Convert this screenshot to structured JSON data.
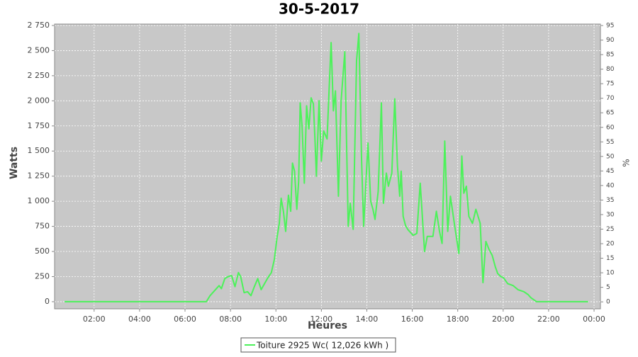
{
  "chart_data": {
    "type": "line",
    "title": "30-5-2017",
    "x_label": "Heures",
    "y_label": "Watts",
    "y2_label": "%",
    "xlim": [
      0.26,
      24.28
    ],
    "xticks": [
      {
        "value": 2,
        "label": "02:00"
      },
      {
        "value": 4,
        "label": "04:00"
      },
      {
        "value": 6,
        "label": "06:00"
      },
      {
        "value": 8,
        "label": "08:00"
      },
      {
        "value": 10,
        "label": "10:00"
      },
      {
        "value": 12,
        "label": "12:00"
      },
      {
        "value": 14,
        "label": "14:00"
      },
      {
        "value": 16,
        "label": "16:00"
      },
      {
        "value": 18,
        "label": "18:00"
      },
      {
        "value": 20,
        "label": "20:00"
      },
      {
        "value": 22,
        "label": "22:00"
      },
      {
        "value": 24,
        "label": "00:00"
      }
    ],
    "ylim": [
      -71,
      2764
    ],
    "yticks": [
      0,
      250,
      500,
      750,
      {
        "value": 1000,
        "label": "1 000"
      },
      {
        "value": 1250,
        "label": "1 250"
      },
      {
        "value": 1500,
        "label": "1 500"
      },
      {
        "value": 1750,
        "label": "1 750"
      },
      {
        "value": 2000,
        "label": "2 000"
      },
      {
        "value": 2250,
        "label": "2 250"
      },
      {
        "value": 2500,
        "label": "2 500"
      },
      {
        "value": 2750,
        "label": "2 750"
      }
    ],
    "y2lim": [
      -2.4,
      95.5
    ],
    "y2ticks": [
      0,
      5,
      10,
      15,
      20,
      25,
      30,
      35,
      40,
      45,
      50,
      55,
      60,
      65,
      70,
      75,
      80,
      85,
      90,
      95
    ],
    "grid": true,
    "legend": "bottom",
    "x": [
      0.7,
      6.5,
      6.94,
      7.1,
      7.3,
      7.5,
      7.6,
      7.75,
      7.9,
      8.05,
      8.2,
      8.35,
      8.45,
      8.6,
      8.75,
      8.9,
      9.05,
      9.2,
      9.35,
      9.5,
      9.65,
      9.8,
      9.93,
      10.05,
      10.15,
      10.23,
      10.33,
      10.43,
      10.55,
      10.65,
      10.73,
      10.82,
      10.92,
      11.0,
      11.07,
      11.15,
      11.25,
      11.35,
      11.45,
      11.55,
      11.65,
      11.72,
      11.78,
      11.9,
      12.0,
      12.1,
      12.25,
      12.33,
      12.43,
      12.53,
      12.62,
      12.75,
      12.87,
      13.03,
      13.18,
      13.27,
      13.4,
      13.55,
      13.65,
      13.77,
      13.86,
      14.05,
      14.17,
      14.27,
      14.36,
      14.5,
      14.64,
      14.73,
      14.86,
      14.95,
      15.1,
      15.23,
      15.35,
      15.45,
      15.51,
      15.6,
      15.7,
      15.8,
      15.88,
      16.04,
      16.2,
      16.35,
      16.54,
      16.66,
      16.91,
      17.06,
      17.2,
      17.31,
      17.43,
      17.56,
      17.68,
      17.85,
      18.05,
      18.18,
      18.27,
      18.38,
      18.49,
      18.65,
      18.8,
      18.99,
      19.11,
      19.24,
      19.38,
      19.52,
      19.65,
      19.76,
      19.9,
      20.01,
      20.2,
      20.44,
      20.65,
      20.91,
      21.1,
      21.22,
      21.47,
      23.74
    ],
    "series": [
      {
        "name": "Toiture 2925 Wc( 12,026 kWh )",
        "color": "#4cf25a",
        "values": [
          0,
          0,
          0,
          60,
          110,
          160,
          130,
          230,
          250,
          260,
          150,
          290,
          250,
          90,
          100,
          60,
          150,
          230,
          120,
          180,
          240,
          290,
          420,
          640,
          780,
          1030,
          900,
          700,
          1060,
          900,
          1380,
          1300,
          920,
          1200,
          1980,
          1750,
          1180,
          1950,
          1720,
          2030,
          1970,
          1600,
          1250,
          2000,
          1400,
          1700,
          1620,
          2050,
          2580,
          1900,
          2100,
          1050,
          2000,
          2490,
          750,
          980,
          720,
          2400,
          2670,
          1400,
          750,
          1580,
          1000,
          920,
          820,
          1100,
          1980,
          980,
          1280,
          1150,
          1280,
          2020,
          1350,
          1050,
          1300,
          850,
          760,
          720,
          700,
          660,
          680,
          1180,
          500,
          650,
          650,
          900,
          700,
          580,
          1600,
          700,
          1050,
          780,
          480,
          1450,
          1080,
          1150,
          850,
          780,
          920,
          780,
          190,
          600,
          520,
          460,
          350,
          280,
          250,
          240,
          180,
          160,
          120,
          100,
          70,
          40,
          0,
          0
        ]
      }
    ]
  }
}
